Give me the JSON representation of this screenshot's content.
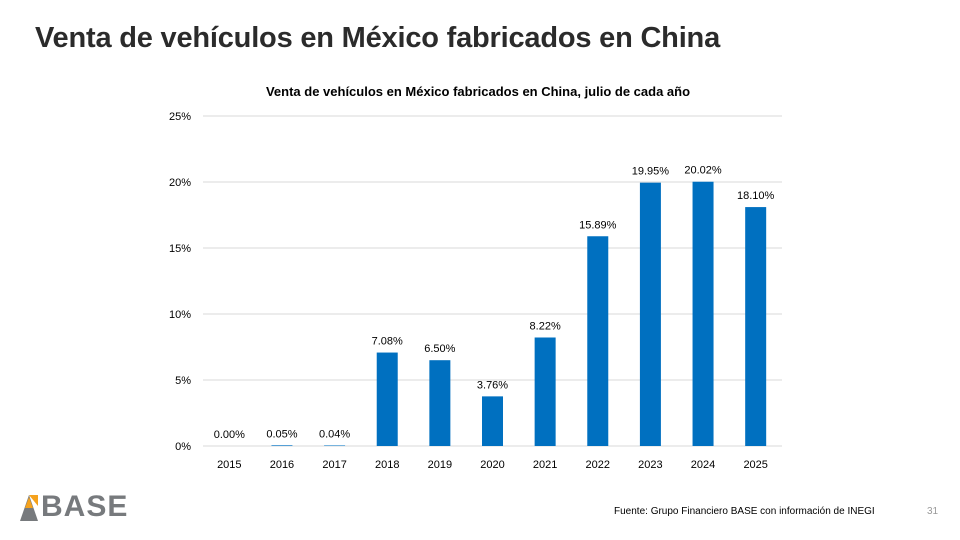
{
  "slide": {
    "title": "Venta de vehículos en México fabricados en China",
    "source": "Fuente: Grupo Financiero BASE con información de INEGI",
    "page_number": "31",
    "logo_text": "BASE"
  },
  "colors": {
    "bar": "#0070C0",
    "gridline": "#d9d9d9",
    "logo_orange": "#F5A21D",
    "logo_gray": "#777a7d"
  },
  "chart_data": {
    "type": "bar",
    "title": "Venta de vehículos en México fabricados en China, julio de cada año",
    "categories": [
      "2015",
      "2016",
      "2017",
      "2018",
      "2019",
      "2020",
      "2021",
      "2022",
      "2023",
      "2024",
      "2025"
    ],
    "values": [
      0.0,
      0.05,
      0.04,
      7.08,
      6.5,
      3.76,
      8.22,
      15.89,
      19.95,
      20.02,
      18.1
    ],
    "data_labels": [
      "0.00%",
      "0.05%",
      "0.04%",
      "7.08%",
      "6.50%",
      "3.76%",
      "8.22%",
      "15.89%",
      "19.95%",
      "20.02%",
      "18.10%"
    ],
    "yticks": [
      0,
      5,
      10,
      15,
      20,
      25
    ],
    "ytick_labels": [
      "0%",
      "5%",
      "10%",
      "15%",
      "20%",
      "25%"
    ],
    "ylim": [
      0,
      25
    ],
    "xlabel": "",
    "ylabel": "",
    "grid": true,
    "legend": "none"
  }
}
